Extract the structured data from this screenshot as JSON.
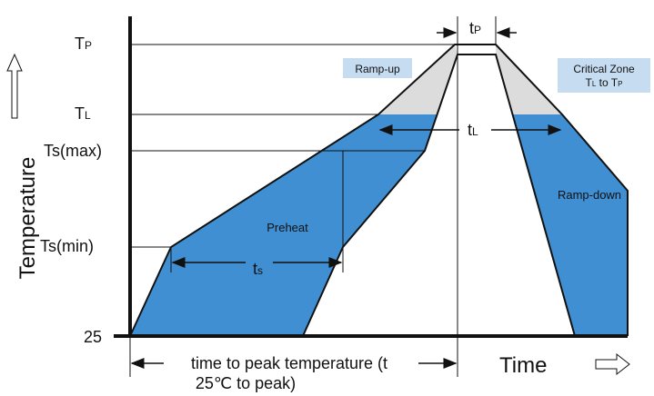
{
  "axis_labels": {
    "y_title": "Temperature",
    "x_title": "Time"
  },
  "levels": [
    {
      "main": "T",
      "sub": "P"
    },
    {
      "main": "T",
      "sub": "L"
    },
    {
      "main": "Ts",
      "sub": "(max)"
    },
    {
      "main": "Ts",
      "sub": "(min)"
    },
    {
      "main": "25"
    }
  ],
  "regions": {
    "ramp_up": "Ramp-up",
    "critical_zone": {
      "line1": "Critical Zone",
      "line2_a": "T",
      "line2_a_sub": "L",
      "line2_b": " to T",
      "line2_b_sub": "P"
    },
    "ramp_down": "Ramp-down",
    "preheat": "Preheat"
  },
  "intervals": {
    "tp": {
      "main": "t",
      "sub": "P"
    },
    "tl": {
      "main": "t",
      "sub": "L"
    },
    "ts": {
      "main": "t",
      "sub": "s"
    }
  },
  "time_to_peak": {
    "line1": "time to peak temperature (t",
    "line2": "25℃  to peak)"
  }
}
